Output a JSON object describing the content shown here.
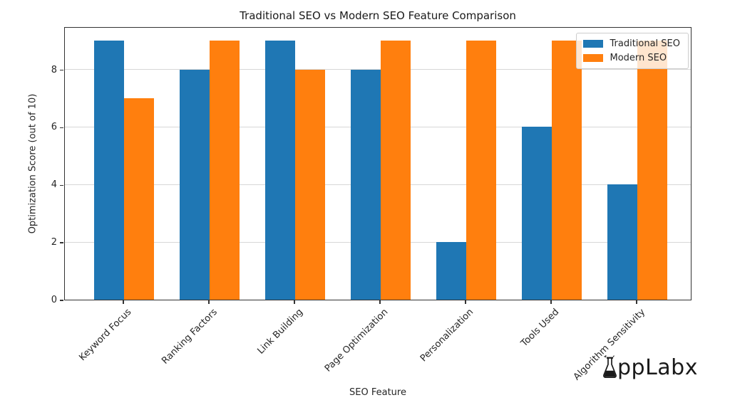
{
  "chart_data": {
    "type": "bar",
    "title": "Traditional SEO vs Modern SEO Feature Comparison",
    "xlabel": "SEO Feature",
    "ylabel": "Optimization Score (out of 10)",
    "categories": [
      "Keyword Focus",
      "Ranking Factors",
      "Link Building",
      "Page Optimization",
      "Personalization",
      "Tools Used",
      "Algorithm Sensitivity"
    ],
    "series": [
      {
        "name": "Traditional SEO",
        "color": "#1f77b4",
        "values": [
          9,
          8,
          9,
          8,
          2,
          6,
          4
        ]
      },
      {
        "name": "Modern SEO",
        "color": "#ff7f0e",
        "values": [
          7,
          9,
          8,
          9,
          9,
          9,
          9
        ]
      }
    ],
    "ylim": [
      0,
      9.5
    ],
    "yticks": [
      0,
      2,
      4,
      6,
      8
    ],
    "grid": "horizontal",
    "legend_position": "upper right",
    "legend_framealpha": 0.8
  },
  "watermark": {
    "brand": "AppLabx",
    "text_after_icon": "ppLabx"
  }
}
